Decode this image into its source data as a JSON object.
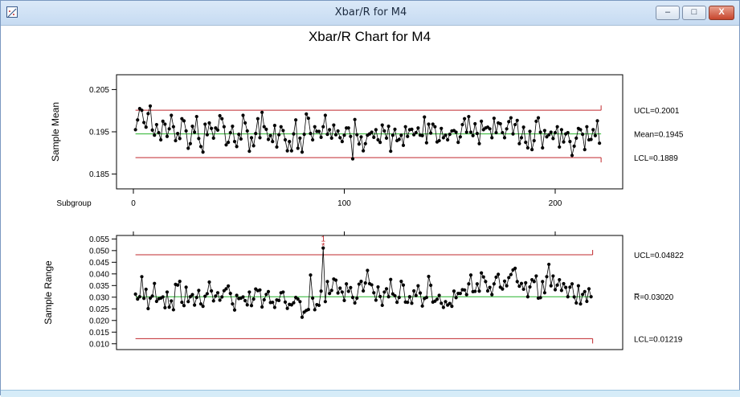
{
  "window": {
    "title": "Xbar/R for M4",
    "minimize_symbol": "–",
    "maximize_symbol": "□",
    "close_symbol": "X",
    "app_icon": "chart-app-icon"
  },
  "chart_title": "Xbar/R Chart for M4",
  "colors": {
    "control_limit": "#c0282d",
    "center_line": "#27b32a",
    "data": "#000000",
    "out_of_control": "#c0282d"
  },
  "chart_data": [
    {
      "type": "line",
      "name": "xbar",
      "ylabel": "Sample Mean",
      "xlabel": "Subgroup",
      "x_ticks": [
        "0",
        "100",
        "200"
      ],
      "y_ticks": [
        "0.205",
        "0.195",
        "0.185"
      ],
      "ylim": [
        0.1815,
        0.2085
      ],
      "xlim": [
        -8,
        232
      ],
      "limits": {
        "ucl": 0.2001,
        "center": 0.1945,
        "lcl": 0.1889
      },
      "limit_labels": {
        "ucl": "UCL=0.2001",
        "center": "Mean=0.1945",
        "lcl": "LCL=0.1889"
      },
      "subgroups": 222,
      "values": [
        0.1955,
        0.1978,
        0.2005,
        0.2001,
        0.1972,
        0.1961,
        0.1993,
        0.2011,
        0.1954,
        0.1942,
        0.1967,
        0.1948,
        0.1931,
        0.1975,
        0.1968,
        0.1939,
        0.1957,
        0.1989,
        0.1962,
        0.1929,
        0.1946,
        0.1934,
        0.1981,
        0.1976,
        0.1952,
        0.1911,
        0.1922,
        0.1963,
        0.1949,
        0.1986,
        0.1934,
        0.1915,
        0.1902,
        0.1968,
        0.1943,
        0.1971,
        0.1958,
        0.1935,
        0.1959,
        0.1954,
        0.1988,
        0.1981,
        0.1962,
        0.1919,
        0.1925,
        0.1948,
        0.1963,
        0.1927,
        0.1915,
        0.1944,
        0.1933,
        0.1989,
        0.1971,
        0.1952,
        0.1904,
        0.1936,
        0.1917,
        0.1946,
        0.1981,
        0.1936,
        0.1996,
        0.1962,
        0.1956,
        0.1932,
        0.1941,
        0.1927,
        0.1965,
        0.1914,
        0.1943,
        0.1962,
        0.1953,
        0.1931,
        0.1905,
        0.1927,
        0.1905,
        0.1945,
        0.1978,
        0.1911,
        0.1935,
        0.1902,
        0.1944,
        0.1992,
        0.1982,
        0.1946,
        0.1931,
        0.1962,
        0.1951,
        0.1951,
        0.1937,
        0.1962,
        0.1989,
        0.1944,
        0.1955,
        0.1935,
        0.1966,
        0.1943,
        0.1952,
        0.1936,
        0.1927,
        0.1942,
        0.1959,
        0.1959,
        0.1939,
        0.1886,
        0.1979,
        0.1943,
        0.1921,
        0.1938,
        0.1905,
        0.1922,
        0.1942,
        0.1945,
        0.1949,
        0.1937,
        0.1955,
        0.1931,
        0.1925,
        0.1966,
        0.1952,
        0.1935,
        0.1963,
        0.1904,
        0.1942,
        0.1956,
        0.1929,
        0.1932,
        0.1942,
        0.1918,
        0.1962,
        0.1939,
        0.1955,
        0.1956,
        0.1943,
        0.1948,
        0.1959,
        0.1942,
        0.1941,
        0.1985,
        0.1924,
        0.1968,
        0.1947,
        0.1968,
        0.1962,
        0.1926,
        0.1929,
        0.1958,
        0.1936,
        0.1942,
        0.1931,
        0.1944,
        0.1952,
        0.1953,
        0.1949,
        0.1925,
        0.1938,
        0.1967,
        0.1981,
        0.1949,
        0.1986,
        0.1949,
        0.1941,
        0.1969,
        0.1946,
        0.1922,
        0.1975,
        0.1955,
        0.1959,
        0.1961,
        0.1957,
        0.1936,
        0.1982,
        0.1948,
        0.1971,
        0.1969,
        0.1948,
        0.1936,
        0.1957,
        0.1974,
        0.1983,
        0.1945,
        0.1967,
        0.1977,
        0.1922,
        0.1936,
        0.1961,
        0.1925,
        0.1912,
        0.1951,
        0.1908,
        0.1929,
        0.1975,
        0.1983,
        0.1949,
        0.1912,
        0.1953,
        0.1938,
        0.1943,
        0.1949,
        0.1934,
        0.1948,
        0.1962,
        0.1914,
        0.1955,
        0.1926,
        0.1945,
        0.1948,
        0.1927,
        0.1894,
        0.1916,
        0.1935,
        0.1958,
        0.1955,
        0.1944,
        0.1908,
        0.1962,
        0.1931,
        0.1932,
        0.1955,
        0.1941,
        0.1976,
        0.1923
      ]
    },
    {
      "type": "line",
      "name": "range",
      "ylabel": "Sample Range",
      "x_ticks": [],
      "y_ticks": [
        "0.055",
        "0.050",
        "0.045",
        "0.040",
        "0.035",
        "0.030",
        "0.025",
        "0.020",
        "0.015",
        "0.010"
      ],
      "ylim": [
        0.0075,
        0.0565
      ],
      "xlim": [
        -8,
        232
      ],
      "limits": {
        "ucl": 0.04822,
        "center": 0.0302,
        "lcl": 0.01219
      },
      "limit_labels": {
        "ucl": "UCL=0.04822",
        "center": "R̅=0.03020",
        "lcl": "LCL=0.01219"
      },
      "out_of_control": [
        {
          "index": 89,
          "label": "1"
        }
      ],
      "values": [
        0.0313,
        0.0292,
        0.0302,
        0.0388,
        0.0295,
        0.0334,
        0.0251,
        0.0296,
        0.0305,
        0.0359,
        0.0282,
        0.0293,
        0.0296,
        0.0301,
        0.0255,
        0.0322,
        0.0257,
        0.0284,
        0.0246,
        0.0355,
        0.0352,
        0.0368,
        0.0278,
        0.0264,
        0.0343,
        0.0281,
        0.0302,
        0.0311,
        0.0266,
        0.0299,
        0.0329,
        0.0271,
        0.0261,
        0.0304,
        0.0315,
        0.0365,
        0.0327,
        0.0284,
        0.0305,
        0.0319,
        0.0287,
        0.0301,
        0.0328,
        0.0336,
        0.0348,
        0.0316,
        0.0271,
        0.0245,
        0.0308,
        0.0294,
        0.0296,
        0.0301,
        0.0285,
        0.0267,
        0.0322,
        0.0264,
        0.0292,
        0.0335,
        0.0328,
        0.0331,
        0.0258,
        0.0289,
        0.0312,
        0.0324,
        0.0277,
        0.0278,
        0.0256,
        0.0288,
        0.0286,
        0.0319,
        0.0322,
        0.0279,
        0.0252,
        0.0269,
        0.0267,
        0.0276,
        0.0299,
        0.0292,
        0.0281,
        0.0214,
        0.0236,
        0.0243,
        0.0247,
        0.0395,
        0.0296,
        0.0246,
        0.0268,
        0.0265,
        0.0326,
        0.0511,
        0.0281,
        0.0367,
        0.0316,
        0.0329,
        0.0378,
        0.0373,
        0.0318,
        0.0339,
        0.0322,
        0.0286,
        0.0357,
        0.0325,
        0.0341,
        0.0299,
        0.0275,
        0.0296,
        0.0356,
        0.0368,
        0.0327,
        0.0361,
        0.0415,
        0.0358,
        0.0353,
        0.0319,
        0.0287,
        0.0344,
        0.0303,
        0.0265,
        0.0322,
        0.0336,
        0.0302,
        0.0376,
        0.0314,
        0.0306,
        0.0278,
        0.0299,
        0.0368,
        0.0352,
        0.0279,
        0.0278,
        0.0302,
        0.0274,
        0.0327,
        0.0307,
        0.0349,
        0.0318,
        0.0262,
        0.0294,
        0.0299,
        0.0389,
        0.0351,
        0.0279,
        0.0283,
        0.0291,
        0.0308,
        0.0274,
        0.0256,
        0.0281,
        0.0266,
        0.0273,
        0.0261,
        0.0326,
        0.0298,
        0.0316,
        0.0316,
        0.0332,
        0.0331,
        0.0311,
        0.0357,
        0.0395,
        0.0324,
        0.0325,
        0.0357,
        0.0326,
        0.0404,
        0.0387,
        0.0367,
        0.0327,
        0.0342,
        0.0311,
        0.0357,
        0.0386,
        0.0398,
        0.0343,
        0.0335,
        0.0369,
        0.0349,
        0.0384,
        0.0397,
        0.0417,
        0.0424,
        0.0367,
        0.0347,
        0.0359,
        0.0334,
        0.0362,
        0.0302,
        0.0344,
        0.0375,
        0.0367,
        0.0391,
        0.0296,
        0.0298,
        0.0367,
        0.0319,
        0.0388,
        0.0441,
        0.0349,
        0.0391,
        0.0332,
        0.0352,
        0.0375,
        0.0329,
        0.0358,
        0.0342,
        0.0302,
        0.0343,
        0.0357,
        0.0301,
        0.0275,
        0.0349,
        0.0271,
        0.0312,
        0.0324,
        0.0282,
        0.0336,
        0.0302
      ]
    }
  ]
}
